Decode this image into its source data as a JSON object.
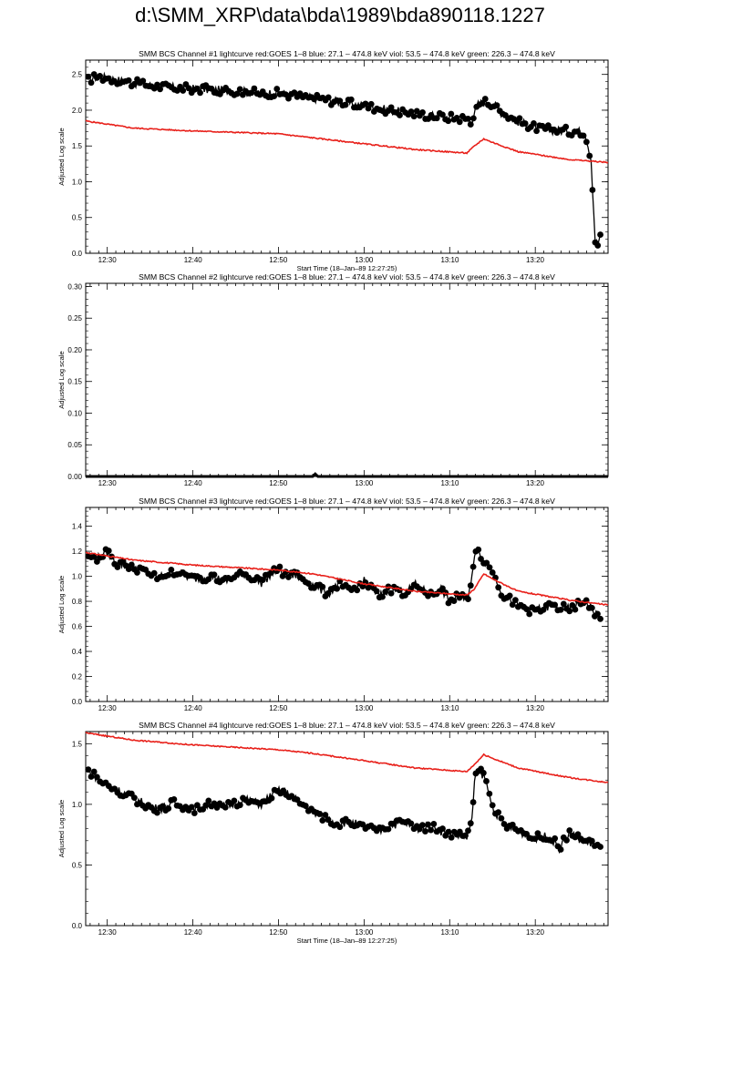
{
  "page": {
    "title": "d:\\SMM_XRP\\data\\bda\\1989\\bda890118.1227"
  },
  "colors": {
    "goes": "#e8201a",
    "bcs": "#000000",
    "axis": "#000000"
  },
  "chart_data": [
    {
      "type": "line",
      "title": "SMM BCS Channel #1 lightcurve  red:GOES 1–8  blue: 27.1 – 474.8 keV  viol: 53.5 – 474.8 keV  green: 226.3 – 474.8 keV",
      "xlabel": "Start Time (18–Jan–89 12:27:25)",
      "ylabel": "Adjusted Log scale",
      "xlim": [
        12.458,
        13.475
      ],
      "xticks": [
        [
          "12:30",
          12.5
        ],
        [
          "12:40",
          12.667
        ],
        [
          "12:50",
          12.833
        ],
        [
          "13:00",
          13.0
        ],
        [
          "13:10",
          13.167
        ],
        [
          "13:20",
          13.333
        ]
      ],
      "ylim": [
        0.0,
        2.7
      ],
      "yticks": [
        "0.0",
        "0.5",
        "1.0",
        "1.5",
        "2.0",
        "2.5"
      ],
      "series": [
        {
          "color": "#000000",
          "marker": "circle",
          "x": [
            12.463,
            12.48,
            12.5,
            12.55,
            12.6,
            12.667,
            12.75,
            12.8,
            12.833,
            12.867,
            12.9,
            12.95,
            13.0,
            13.05,
            13.1,
            13.15,
            13.2,
            13.21,
            13.222,
            13.233,
            13.25,
            13.267,
            13.3,
            13.333,
            13.367,
            13.43,
            13.442,
            13.45,
            13.455,
            13.46
          ],
          "y": [
            2.42,
            2.47,
            2.45,
            2.38,
            2.33,
            2.3,
            2.27,
            2.24,
            2.24,
            2.2,
            2.17,
            2.12,
            2.06,
            2.0,
            1.95,
            1.91,
            1.88,
            1.85,
            2.08,
            2.12,
            2.1,
            1.97,
            1.84,
            1.76,
            1.72,
            1.7,
            1.32,
            0.18,
            0.12,
            0.26
          ]
        },
        {
          "color": "#e8201a",
          "marker": "none",
          "x": [
            12.458,
            12.55,
            12.667,
            12.833,
            13.0,
            13.1,
            13.2,
            13.215,
            13.233,
            13.25,
            13.3,
            13.4,
            13.475
          ],
          "y": [
            1.85,
            1.75,
            1.71,
            1.67,
            1.53,
            1.45,
            1.4,
            1.5,
            1.6,
            1.55,
            1.42,
            1.31,
            1.27
          ]
        }
      ]
    },
    {
      "type": "line",
      "title": "SMM BCS Channel #2 lightcurve  red:GOES 1–8  blue: 27.1 – 474.8 keV  viol: 53.5 – 474.8 keV  green: 226.3 – 474.8 keV",
      "xlabel": "",
      "ylabel": "Adjusted Log scale",
      "xlim": [
        12.458,
        13.475
      ],
      "xticks": [
        [
          "12:30",
          12.5
        ],
        [
          "12:40",
          12.667
        ],
        [
          "12:50",
          12.833
        ],
        [
          "13:00",
          13.0
        ],
        [
          "13:10",
          13.167
        ],
        [
          "13:20",
          13.333
        ]
      ],
      "ylim": [
        0.0,
        0.305
      ],
      "yticks": [
        "0.00",
        "0.05",
        "0.10",
        "0.15",
        "0.20",
        "0.25",
        "0.30"
      ],
      "series": [
        {
          "color": "#000000",
          "marker": "flat",
          "x": [
            12.458,
            12.9,
            12.905,
            12.91,
            13.475
          ],
          "y": [
            0.0,
            0.0,
            0.004,
            0.0,
            0.0
          ]
        }
      ]
    },
    {
      "type": "line",
      "title": "SMM BCS Channel #3 lightcurve  red:GOES 1–8  blue: 27.1 – 474.8 keV  viol: 53.5 – 474.8 keV  green: 226.3 – 474.8 keV",
      "xlabel": "",
      "ylabel": "Adjusted Log scale",
      "xlim": [
        12.458,
        13.475
      ],
      "xticks": [
        [
          "12:30",
          12.5
        ],
        [
          "12:40",
          12.667
        ],
        [
          "12:50",
          12.833
        ],
        [
          "13:00",
          13.0
        ],
        [
          "13:10",
          13.167
        ],
        [
          "13:20",
          13.333
        ]
      ],
      "ylim": [
        0.0,
        1.55
      ],
      "yticks": [
        "0.0",
        "0.2",
        "0.4",
        "0.6",
        "0.8",
        "1.0",
        "1.2",
        "1.4"
      ],
      "series": [
        {
          "color": "#000000",
          "marker": "circle",
          "x": [
            12.463,
            12.48,
            12.5,
            12.52,
            12.55,
            12.58,
            12.6,
            12.63,
            12.667,
            12.7,
            12.73,
            12.767,
            12.8,
            12.833,
            12.85,
            12.867,
            12.9,
            12.93,
            12.95,
            12.97,
            13.0,
            13.03,
            13.05,
            13.08,
            13.1,
            13.13,
            13.15,
            13.17,
            13.18,
            13.2,
            13.21,
            13.22,
            13.23,
            13.25,
            13.27,
            13.3,
            13.33,
            13.36,
            13.4,
            13.43,
            13.46
          ],
          "y": [
            1.17,
            1.14,
            1.19,
            1.1,
            1.08,
            1.02,
            0.99,
            1.04,
            0.98,
            1.0,
            0.96,
            1.02,
            0.95,
            1.06,
            0.99,
            1.01,
            0.93,
            0.86,
            0.94,
            0.88,
            0.96,
            0.84,
            0.9,
            0.87,
            0.93,
            0.85,
            0.9,
            0.78,
            0.86,
            0.8,
            1.0,
            1.26,
            1.14,
            1.05,
            0.85,
            0.77,
            0.72,
            0.76,
            0.74,
            0.8,
            0.66
          ]
        },
        {
          "color": "#e8201a",
          "marker": "none",
          "x": [
            12.458,
            12.55,
            12.667,
            12.833,
            12.9,
            13.0,
            13.1,
            13.2,
            13.215,
            13.233,
            13.25,
            13.3,
            13.4,
            13.475
          ],
          "y": [
            1.19,
            1.13,
            1.09,
            1.05,
            1.02,
            0.94,
            0.88,
            0.85,
            0.9,
            1.02,
            0.98,
            0.88,
            0.81,
            0.77
          ]
        }
      ]
    },
    {
      "type": "line",
      "title": "SMM BCS Channel #4 lightcurve  red:GOES 1–8  blue: 27.1 – 474.8 keV  viol: 53.5 – 474.8 keV  green: 226.3 – 474.8 keV",
      "xlabel": "Start Time (18–Jan–89 12:27:25)",
      "ylabel": "Adjusted Log scale",
      "xlim": [
        12.458,
        13.475
      ],
      "xticks": [
        [
          "12:30",
          12.5
        ],
        [
          "12:40",
          12.667
        ],
        [
          "12:50",
          12.833
        ],
        [
          "13:00",
          13.0
        ],
        [
          "13:10",
          13.167
        ],
        [
          "13:20",
          13.333
        ]
      ],
      "ylim": [
        0.0,
        1.6
      ],
      "yticks": [
        "0.0",
        "0.5",
        "1.0",
        "1.5"
      ],
      "series": [
        {
          "color": "#000000",
          "marker": "circle",
          "x": [
            12.463,
            12.48,
            12.5,
            12.52,
            12.55,
            12.58,
            12.6,
            12.63,
            12.667,
            12.7,
            12.73,
            12.767,
            12.8,
            12.82,
            12.84,
            12.867,
            12.9,
            12.93,
            12.95,
            12.97,
            13.0,
            13.03,
            13.05,
            13.08,
            13.1,
            13.13,
            13.15,
            13.17,
            13.2,
            13.21,
            13.215,
            13.225,
            13.235,
            13.25,
            13.27,
            13.3,
            13.33,
            13.36,
            13.38,
            13.4,
            13.43,
            13.46
          ],
          "y": [
            1.28,
            1.22,
            1.15,
            1.12,
            1.05,
            0.99,
            0.96,
            1.01,
            0.96,
            1.0,
            0.98,
            1.04,
            1.0,
            1.08,
            1.12,
            1.04,
            0.93,
            0.88,
            0.84,
            0.86,
            0.81,
            0.78,
            0.83,
            0.85,
            0.8,
            0.82,
            0.78,
            0.76,
            0.73,
            0.86,
            1.2,
            1.28,
            1.22,
            0.98,
            0.84,
            0.78,
            0.72,
            0.74,
            0.64,
            0.76,
            0.69,
            0.65
          ]
        },
        {
          "color": "#e8201a",
          "marker": "none",
          "x": [
            12.458,
            12.55,
            12.667,
            12.833,
            12.9,
            13.0,
            13.1,
            13.2,
            13.215,
            13.233,
            13.25,
            13.3,
            13.4,
            13.475
          ],
          "y": [
            1.59,
            1.53,
            1.49,
            1.45,
            1.42,
            1.36,
            1.3,
            1.27,
            1.33,
            1.41,
            1.38,
            1.3,
            1.22,
            1.18
          ]
        }
      ]
    }
  ]
}
